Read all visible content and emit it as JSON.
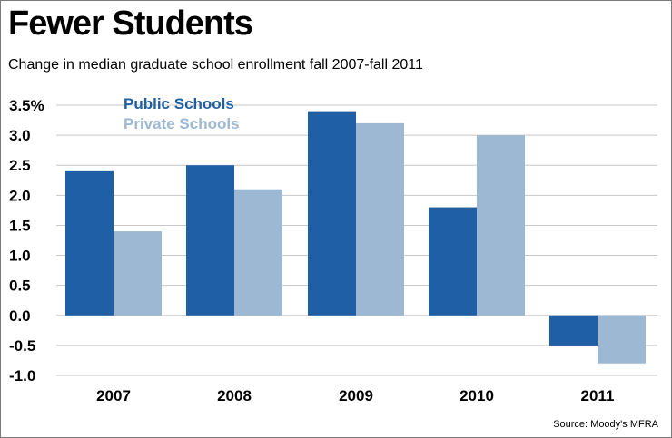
{
  "chart_data": {
    "type": "bar",
    "title": "Fewer Students",
    "subtitle": "Change in median graduate school enrollment fall 2007-fall 2011",
    "source": "Source: Moody's MFRA",
    "categories": [
      "2007",
      "2008",
      "2009",
      "2010",
      "2011"
    ],
    "series": [
      {
        "name": "Public Schools",
        "color": "#1f5fa5",
        "values": [
          2.4,
          2.5,
          3.4,
          1.8,
          -0.5
        ]
      },
      {
        "name": "Private Schools",
        "color": "#9db8d2",
        "values": [
          1.4,
          2.1,
          3.2,
          3.0,
          -0.8
        ]
      }
    ],
    "ylim": [
      -1.0,
      3.5
    ],
    "yticks": [
      "3.5%",
      "3.0",
      "2.5",
      "2.0",
      "1.5",
      "1.0",
      "0.5",
      "0.0",
      "-0.5",
      "-1.0"
    ],
    "ytick_values": [
      3.5,
      3.0,
      2.5,
      2.0,
      1.5,
      1.0,
      0.5,
      0.0,
      -0.5,
      -1.0
    ],
    "grid": true,
    "legend_position": "top-left"
  }
}
